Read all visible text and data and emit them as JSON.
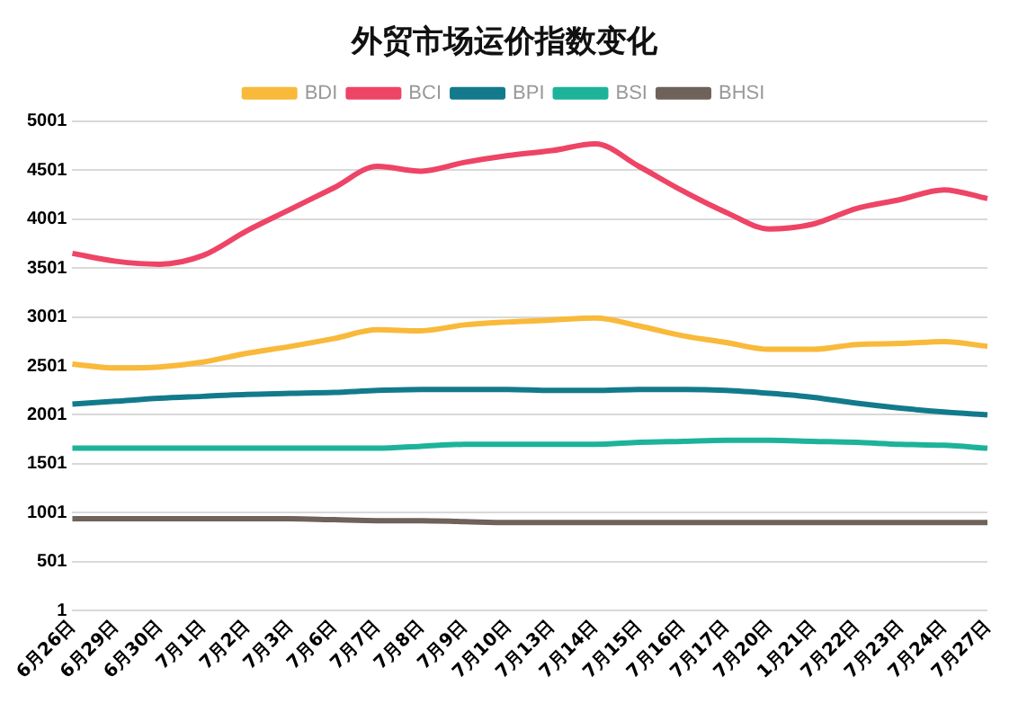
{
  "chart_data": {
    "type": "line",
    "title": "外贸市场运价指数变化",
    "categories": [
      "6月26日",
      "6月29日",
      "6月30日",
      "7月1日",
      "7月2日",
      "7月3日",
      "7月6日",
      "7月7日",
      "7月8日",
      "7月9日",
      "7月10日",
      "7月13日",
      "7月14日",
      "7月15日",
      "7月16日",
      "7月17日",
      "7月20日",
      "1月21日",
      "7月22日",
      "7月23日",
      "7月24日",
      "7月27日"
    ],
    "series": [
      {
        "name": "BDI",
        "color": "#f9b93a",
        "values": [
          2520,
          2480,
          2490,
          2540,
          2630,
          2700,
          2780,
          2870,
          2860,
          2920,
          2950,
          2970,
          2990,
          2910,
          2810,
          2740,
          2670,
          2670,
          2720,
          2730,
          2750,
          2700
        ]
      },
      {
        "name": "BCI",
        "color": "#ee4466",
        "values": [
          3650,
          3570,
          3540,
          3630,
          3880,
          4100,
          4320,
          4540,
          4490,
          4580,
          4650,
          4700,
          4770,
          4540,
          4290,
          4070,
          3900,
          3950,
          4110,
          4200,
          4300,
          4210
        ]
      },
      {
        "name": "BPI",
        "color": "#137a8c",
        "values": [
          2110,
          2140,
          2170,
          2190,
          2210,
          2220,
          2230,
          2250,
          2260,
          2260,
          2260,
          2250,
          2250,
          2260,
          2260,
          2250,
          2220,
          2180,
          2120,
          2070,
          2030,
          2000
        ]
      },
      {
        "name": "BSI",
        "color": "#1db39a",
        "values": [
          1660,
          1660,
          1660,
          1660,
          1660,
          1660,
          1660,
          1660,
          1680,
          1700,
          1700,
          1700,
          1700,
          1720,
          1730,
          1740,
          1740,
          1730,
          1720,
          1700,
          1690,
          1660
        ]
      },
      {
        "name": "BHSI",
        "color": "#6e625a",
        "values": [
          940,
          940,
          940,
          940,
          940,
          940,
          930,
          920,
          920,
          910,
          900,
          900,
          900,
          900,
          900,
          900,
          900,
          900,
          900,
          900,
          900,
          900
        ]
      }
    ],
    "ylim": [
      1,
      5001
    ],
    "yticks": [
      1,
      501,
      1001,
      1501,
      2001,
      2501,
      3001,
      3501,
      4001,
      4501,
      5001
    ],
    "grid": "y",
    "legend": "top",
    "marker": "none",
    "line_style": "solid"
  }
}
